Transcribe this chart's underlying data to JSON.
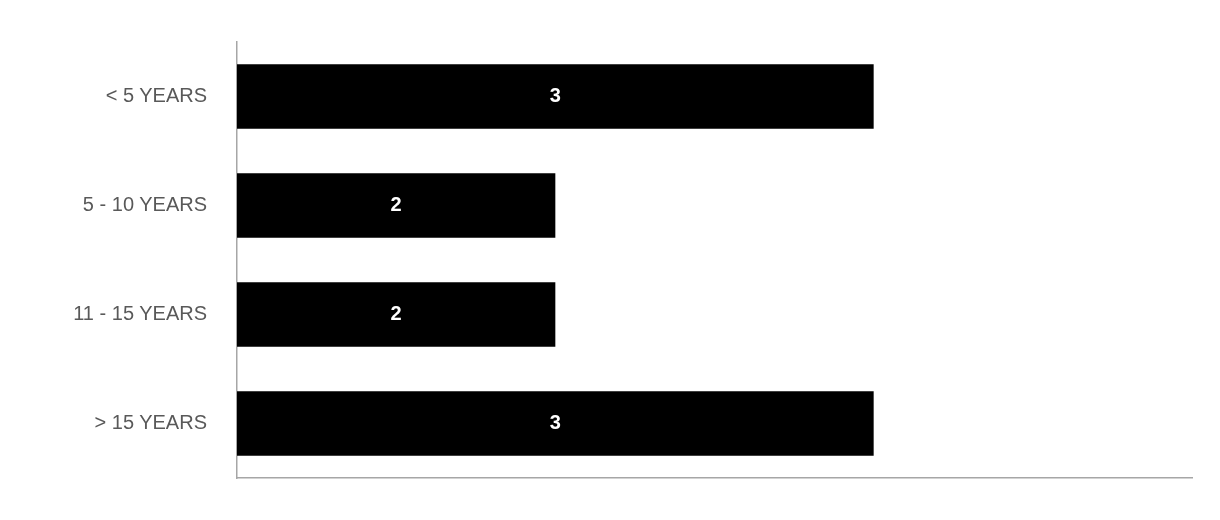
{
  "chart_data": {
    "type": "bar",
    "orientation": "horizontal",
    "categories": [
      "< 5 YEARS",
      "5 - 10 YEARS",
      "11 - 15 YEARS",
      "> 15 YEARS"
    ],
    "values": [
      3,
      2,
      2,
      3
    ],
    "color": "#000000",
    "xlim": [
      1,
      4
    ],
    "tick_labels": "y",
    "data_labels": true
  }
}
